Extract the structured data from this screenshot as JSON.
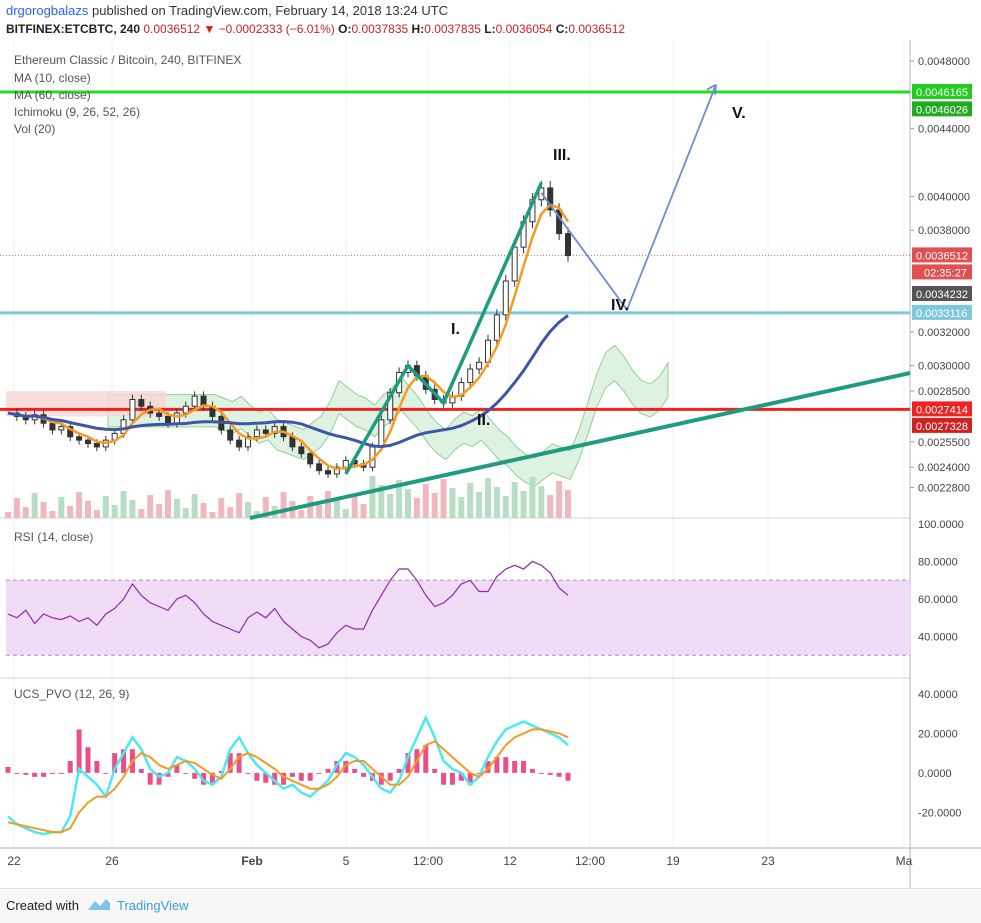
{
  "header": {
    "user": "drgorogbalazs",
    "published": "published on TradingView.com, February 14, 2018 13:24 UTC",
    "symbol": "BITFINEX:ETCBTC, 240",
    "last": "0.0036512",
    "change": "−0.0002333 (−6.01%)",
    "ohlc": {
      "o": "0.0037835",
      "h": "0.0037835",
      "l": "0.0036054",
      "c": "0.0036512"
    }
  },
  "legend": {
    "title": "Ethereum Classic / Bitcoin, 240, BITFINEX",
    "ma10": "MA (10, close)",
    "ma60": "MA (60, close)",
    "ichimoku": "Ichimoku (9, 26, 52, 26)",
    "vol": "Vol (20)",
    "rsi": "RSI (14, close)",
    "pvo": "UCS_PVO (12, 26, 9)"
  },
  "footer": {
    "created": "Created with",
    "brand": "TradingView"
  },
  "colors": {
    "green_level": "#22dd22",
    "red_level": "#ee2222",
    "cyan_level": "#7ec8dc",
    "trend": "#1f9c80",
    "ma10": "#f59a23",
    "ma60": "#3d57a8",
    "projection": "#6f8ccf",
    "rsi": "#8e2aa8",
    "rsi_band": "#f1dcf7",
    "pvo_fast": "#4de8f2",
    "pvo_slow": "#f59a23",
    "hist": "#e8508c"
  },
  "chart_data": {
    "type": "line",
    "x_ticks": [
      "22",
      "26",
      "Feb",
      "5",
      "12:00",
      "12",
      "12:00",
      "19",
      "23",
      "Ma"
    ],
    "price_axis": {
      "ticks": [
        "0.0048000",
        "0.0044000",
        "0.0040000",
        "0.0038000",
        "0.0032000",
        "0.0030000",
        "0.0028500",
        "0.0025500",
        "0.0024000",
        "0.0022800"
      ],
      "range": [
        0.0021,
        0.0049
      ]
    },
    "price_labels": [
      {
        "value": 0.0046165,
        "text": "0.0046165",
        "color": "#22cc22"
      },
      {
        "value": 0.0046026,
        "text": "0.0046026",
        "color": "#22aa22"
      },
      {
        "value": 0.0036512,
        "text": "0.0036512",
        "color": "#e05050"
      },
      {
        "value": 0.0036512,
        "text": "02:35:27",
        "color": "#e05050",
        "timer": true
      },
      {
        "value": 0.0034232,
        "text": "0.0034232",
        "color": "#555555"
      },
      {
        "value": 0.0033116,
        "text": "0.0033116",
        "color": "#7ec8dc"
      },
      {
        "value": 0.0027414,
        "text": "0.0027414",
        "color": "#ee2222"
      },
      {
        "value": 0.0027328,
        "text": "0.0027328",
        "color": "#cc2222"
      }
    ],
    "levels": [
      {
        "name": "green",
        "value": 0.0046165
      },
      {
        "name": "cyan",
        "value": 0.0033116
      },
      {
        "name": "red",
        "value": 0.0027414
      }
    ],
    "wave_labels": [
      "I.",
      "II.",
      "III.",
      "IV.",
      "V."
    ],
    "close_series": [
      0.00272,
      0.0027,
      0.00268,
      0.00271,
      0.00266,
      0.00262,
      0.00264,
      0.00258,
      0.00256,
      0.00254,
      0.00252,
      0.00256,
      0.0026,
      0.00268,
      0.0028,
      0.00276,
      0.00272,
      0.0027,
      0.00266,
      0.00272,
      0.00276,
      0.00282,
      0.00276,
      0.0027,
      0.00262,
      0.00256,
      0.00252,
      0.00258,
      0.00262,
      0.0026,
      0.00264,
      0.00258,
      0.00252,
      0.00248,
      0.00242,
      0.00238,
      0.00236,
      0.0024,
      0.00244,
      0.00242,
      0.0024,
      0.00252,
      0.00268,
      0.00284,
      0.00296,
      0.003,
      0.00294,
      0.00286,
      0.0028,
      0.00278,
      0.00282,
      0.0029,
      0.00298,
      0.00302,
      0.00315,
      0.0033,
      0.0035,
      0.0037,
      0.00385,
      0.00398,
      0.00405,
      0.00392,
      0.00378,
      0.00365
    ],
    "rsi": {
      "axis": [
        "100.0000",
        "80.0000",
        "60.0000",
        "40.0000"
      ],
      "range": [
        20,
        100
      ],
      "band": [
        30,
        70
      ],
      "values": [
        52,
        50,
        54,
        47,
        52,
        50,
        49,
        51,
        48,
        50,
        46,
        52,
        55,
        60,
        68,
        62,
        58,
        56,
        54,
        60,
        62,
        58,
        52,
        48,
        46,
        44,
        42,
        50,
        53,
        50,
        55,
        48,
        44,
        40,
        38,
        34,
        36,
        42,
        46,
        44,
        44,
        54,
        62,
        70,
        76,
        76,
        70,
        62,
        56,
        58,
        62,
        68,
        70,
        64,
        64,
        72,
        76,
        78,
        76,
        80,
        78,
        74,
        66,
        62
      ]
    },
    "pvo": {
      "axis": [
        "40.0000",
        "20.0000",
        "0.0000",
        "-20.0000"
      ],
      "range": [
        -35,
        45
      ],
      "fast": [
        -22,
        -26,
        -28,
        -30,
        -31,
        -30,
        -30,
        -22,
        2,
        -2,
        -6,
        -12,
        2,
        10,
        18,
        12,
        2,
        -2,
        0,
        8,
        6,
        2,
        -4,
        -6,
        -2,
        12,
        18,
        10,
        4,
        0,
        -4,
        -8,
        -6,
        -10,
        -12,
        -8,
        -4,
        4,
        10,
        8,
        4,
        -2,
        -8,
        -10,
        -4,
        8,
        18,
        28,
        18,
        6,
        2,
        0,
        -6,
        -2,
        8,
        16,
        22,
        24,
        26,
        24,
        22,
        20,
        18,
        14
      ],
      "slow": [
        -25,
        -26,
        -27,
        -28,
        -29,
        -30,
        -30,
        -28,
        -20,
        -15,
        -12,
        -12,
        -8,
        -2,
        6,
        10,
        8,
        4,
        2,
        4,
        6,
        5,
        2,
        -1,
        -3,
        2,
        8,
        10,
        8,
        5,
        2,
        -2,
        -4,
        -6,
        -8,
        -8,
        -6,
        -2,
        4,
        6,
        6,
        2,
        -2,
        -6,
        -6,
        -2,
        6,
        14,
        16,
        12,
        8,
        4,
        0,
        -2,
        2,
        8,
        14,
        18,
        20,
        22,
        22,
        21,
        20,
        18
      ]
    }
  }
}
